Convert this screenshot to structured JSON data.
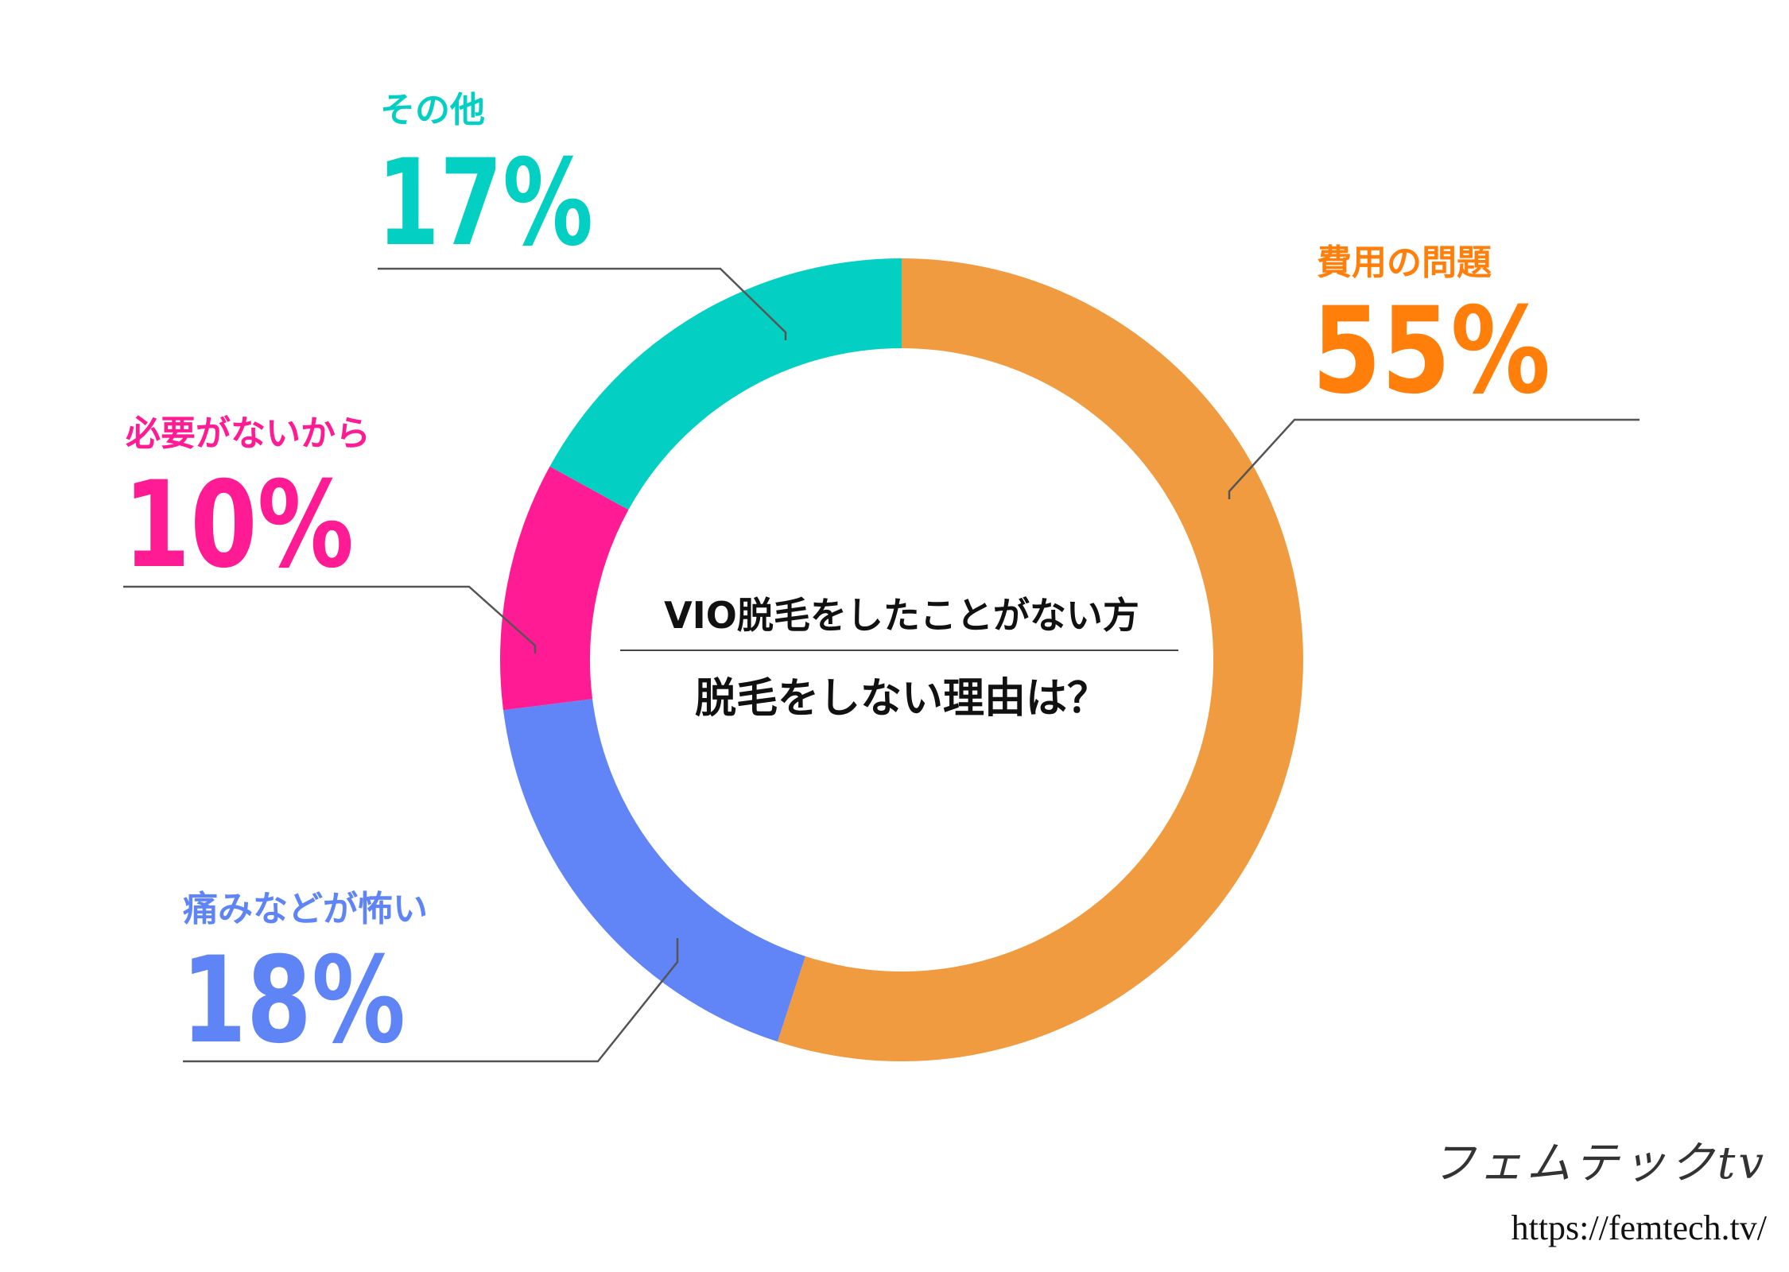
{
  "colors": {
    "cost": "#F09B40",
    "pain": "#6184F6",
    "unneeded": "#FF1B93",
    "other": "#04CFC3",
    "cost_text": "#FF7F0A",
    "pain_text": "#5E84F5",
    "unneeded_text": "#FF1B93",
    "other_text": "#04CFC3"
  },
  "chart_data": {
    "type": "pie",
    "title": "脱毛をしない理由は？",
    "subtitle": "VIO脱毛をしたことがない方",
    "slices": [
      {
        "label": "費用の問題",
        "value": 55,
        "value_label": "55%",
        "color": "#F09B40",
        "text_color": "#FF7F0A"
      },
      {
        "label": "痛みなどが怖い",
        "value": 18,
        "value_label": "18%",
        "color": "#6184F6",
        "text_color": "#5E84F5"
      },
      {
        "label": "必要がないから",
        "value": 10,
        "value_label": "10%",
        "color": "#FF1B93",
        "text_color": "#FF1B93"
      },
      {
        "label": "その他",
        "value": 17,
        "value_label": "17%",
        "color": "#04CFC3",
        "text_color": "#04CFC3"
      }
    ],
    "start": "top",
    "direction": "clockwise"
  },
  "brand": {
    "logo": "フェムテックtv",
    "url": "https://femtech.tv/"
  }
}
